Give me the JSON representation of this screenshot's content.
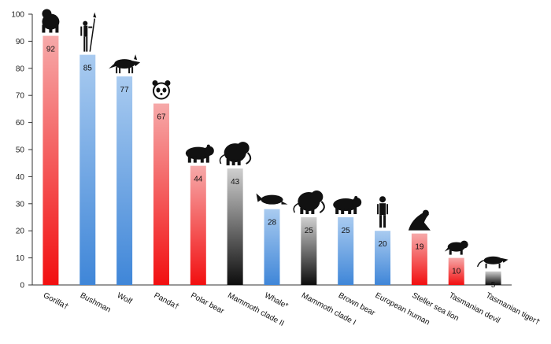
{
  "chart_data": {
    "type": "bar",
    "title": "",
    "xlabel": "",
    "ylabel": "",
    "ylim": [
      0,
      100
    ],
    "yticks": [
      0,
      10,
      20,
      30,
      40,
      50,
      60,
      70,
      80,
      90,
      100
    ],
    "grid": false,
    "categories": [
      "Gorilla†",
      "Bushman",
      "Wolf",
      "Panda†",
      "Polar bear",
      "Mammoth clade II",
      "Whale*",
      "Mammoth clade I",
      "Brown bear",
      "European human",
      "Steller sea lion",
      "Tasmanian devil",
      "Tasmanian tiger†"
    ],
    "values": [
      92,
      85,
      77,
      67,
      44,
      43,
      28,
      25,
      25,
      20,
      19,
      10,
      5
    ],
    "value_labels": [
      "92",
      "85",
      "77",
      "67",
      "44",
      "43",
      "28",
      "25",
      "25",
      "20",
      "19",
      "10",
      "5"
    ],
    "bar_colors": [
      "red",
      "blue",
      "blue",
      "red",
      "red",
      "black",
      "blue",
      "black",
      "blue",
      "blue",
      "red",
      "red",
      "black"
    ],
    "icons": [
      "gorilla-icon",
      "bushman-icon",
      "wolf-icon",
      "panda-icon",
      "polar-bear-icon",
      "mammoth-icon",
      "whale-icon",
      "mammoth-icon",
      "brown-bear-icon",
      "human-icon",
      "sea-lion-icon",
      "tasmanian-devil-icon",
      "tasmanian-tiger-icon"
    ],
    "colors": {
      "red": "#f20f10",
      "blue": "#4a8fdc",
      "black": "#111111",
      "axis": "#333333"
    }
  }
}
